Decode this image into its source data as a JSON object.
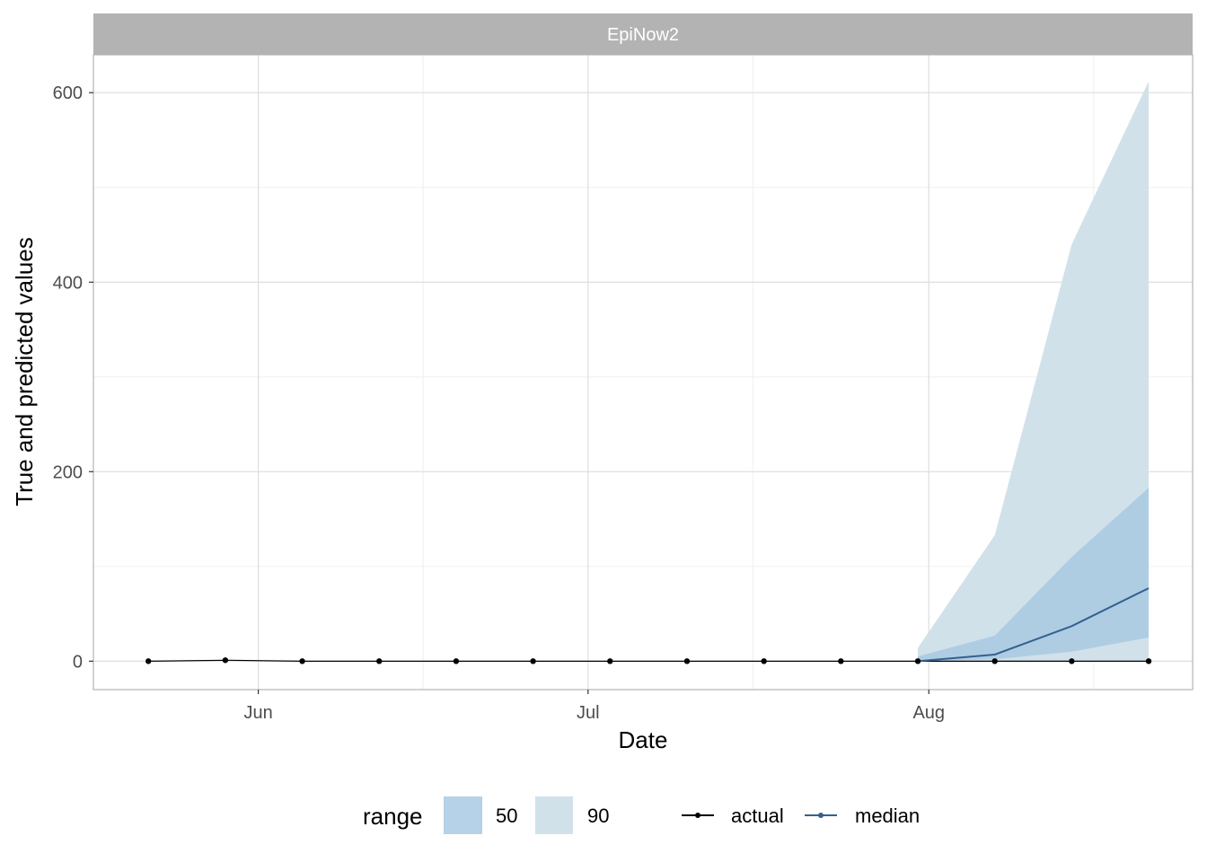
{
  "chart_data": {
    "type": "line",
    "panel": "EpiNow2",
    "xlabel": "Date",
    "ylabel": "True and predicted values",
    "x_ticks": [
      {
        "date": "2020-06-01",
        "label": "Jun"
      },
      {
        "date": "2020-07-01",
        "label": "Jul"
      },
      {
        "date": "2020-08-01",
        "label": "Aug"
      }
    ],
    "x_minor_ticks": [
      "2020-06-16",
      "2020-07-16",
      "2020-08-16"
    ],
    "xlim": [
      "2020-05-17",
      "2020-08-25"
    ],
    "y_ticks": [
      0,
      200,
      400,
      600
    ],
    "y_minor_ticks": [
      100,
      300,
      500
    ],
    "ylim": [
      -30,
      640
    ],
    "grid": true,
    "series": [
      {
        "name": "actual",
        "color": "#000000",
        "x": [
          "2020-05-22",
          "2020-05-29",
          "2020-06-05",
          "2020-06-12",
          "2020-06-19",
          "2020-06-26",
          "2020-07-03",
          "2020-07-10",
          "2020-07-17",
          "2020-07-24",
          "2020-07-31",
          "2020-08-07",
          "2020-08-14",
          "2020-08-21"
        ],
        "y": [
          0,
          1,
          0,
          0,
          0,
          0,
          0,
          0,
          0,
          0,
          0,
          0,
          0,
          0
        ]
      },
      {
        "name": "median",
        "color": "#35618f",
        "x": [
          "2020-07-31",
          "2020-08-07",
          "2020-08-14",
          "2020-08-21"
        ],
        "y": [
          0,
          7,
          37,
          77
        ]
      }
    ],
    "ranges": [
      {
        "name": "90",
        "color": "#d1e1ea",
        "x": [
          "2020-07-31",
          "2020-08-07",
          "2020-08-14",
          "2020-08-21"
        ],
        "lower": [
          0,
          0,
          0,
          0
        ],
        "upper": [
          14,
          133,
          440,
          612
        ]
      },
      {
        "name": "50",
        "color": "#a5c8e1",
        "x": [
          "2020-07-31",
          "2020-08-07",
          "2020-08-14",
          "2020-08-21"
        ],
        "lower": [
          0,
          2,
          10,
          25
        ],
        "upper": [
          5,
          27,
          110,
          183
        ]
      }
    ],
    "legend": {
      "position": "bottom",
      "range_title": "range",
      "range_items": [
        {
          "label": "50",
          "color": "#b5d2e8"
        },
        {
          "label": "90",
          "color": "#d1e1ea"
        }
      ],
      "line_items": [
        {
          "label": "actual",
          "color": "#000000"
        },
        {
          "label": "median",
          "color": "#35618f"
        }
      ]
    }
  }
}
